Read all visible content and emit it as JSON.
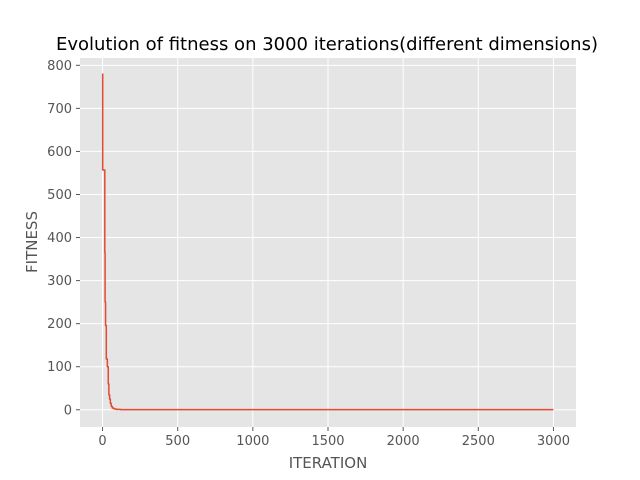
{
  "chart_data": {
    "type": "line",
    "title": "Evolution of fitness on 3000 iterations(different dimensions)",
    "xlabel": "ITERATION",
    "ylabel": "FITNESS",
    "xlim": [
      -150,
      3150
    ],
    "ylim": [
      -40,
      817
    ],
    "xticks": [
      0,
      500,
      1000,
      1500,
      2000,
      2500,
      3000
    ],
    "yticks": [
      0,
      100,
      200,
      300,
      400,
      500,
      600,
      700,
      800
    ],
    "grid": true,
    "colors": {
      "background": "#e5e5e5",
      "grid": "#ffffff",
      "line": "#e24a33"
    },
    "series": [
      {
        "x": [
          0,
          1,
          1,
          15,
          15,
          17,
          17,
          20,
          20,
          25,
          25,
          32,
          32,
          38,
          38,
          42,
          42,
          47,
          47,
          52,
          52,
          58,
          58,
          65,
          65,
          75,
          75,
          90,
          90,
          120,
          120,
          3000
        ],
        "y": [
          780,
          780,
          557,
          557,
          365,
          365,
          250,
          250,
          196,
          196,
          118,
          118,
          100,
          100,
          60,
          60,
          35,
          35,
          25,
          25,
          15,
          15,
          8,
          8,
          4,
          4,
          2,
          2,
          1,
          1,
          0.3,
          0.3
        ]
      }
    ]
  }
}
